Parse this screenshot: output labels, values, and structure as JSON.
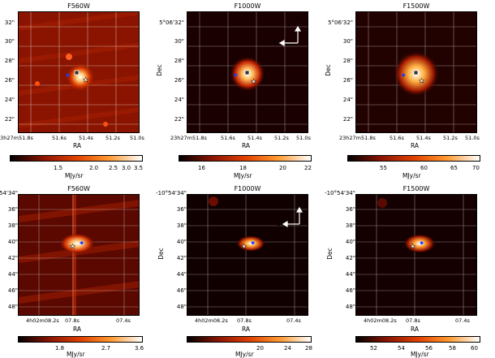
{
  "panels": [
    {
      "title": "F560W",
      "ylabels": [
        "32\"",
        "30\"",
        "28\"",
        "26\"",
        "24\"",
        "22\""
      ],
      "ylabel_prefix_first": "",
      "xlabels": [
        "23h27m51.8s",
        "51.6s",
        "51.4s",
        "51.2s",
        "51.0s"
      ],
      "xtitle": "RA",
      "ytitle": "",
      "cbar_ticks": [
        "1.5",
        "2.0",
        "2.5",
        "3.0",
        "3.5"
      ],
      "cbar_unit": "MJy/sr",
      "compass": false
    },
    {
      "title": "F1000W",
      "ylabels": [
        "5°06'32\"",
        "30\"",
        "28\"",
        "26\"",
        "24\"",
        "22\""
      ],
      "xlabels": [
        "23h27m51.8s",
        "51.6s",
        "51.4s",
        "51.2s",
        "51.0s"
      ],
      "xtitle": "RA",
      "ytitle": "Dec",
      "cbar_ticks": [
        "16",
        "18",
        "20",
        "22"
      ],
      "cbar_unit": "MJy/sr",
      "compass": true
    },
    {
      "title": "F1500W",
      "ylabels": [
        "5°06'32\"",
        "30\"",
        "28\"",
        "26\"",
        "24\"",
        "22\""
      ],
      "xlabels": [
        "23h27m51.8s",
        "51.6s",
        "51.4s",
        "51.2s",
        "51.0s"
      ],
      "xtitle": "RA",
      "ytitle": "Dec",
      "cbar_ticks": [
        "55",
        "60",
        "65",
        "70"
      ],
      "cbar_unit": "MJy/sr",
      "compass": false
    },
    {
      "title": "F560W",
      "ylabels": [
        "-10°54'34\"",
        "36\"",
        "38\"",
        "40\"",
        "42\"",
        "44\"",
        "46\"",
        "48\""
      ],
      "xlabels": [
        "4h02m08.2s",
        "07.8s",
        "07.4s"
      ],
      "xtitle": "RA",
      "ytitle": "",
      "cbar_ticks": [
        "1.8",
        "2.7",
        "3.6"
      ],
      "cbar_unit": "MJy/sr",
      "compass": false
    },
    {
      "title": "F1000W",
      "ylabels": [
        "-10°54'34\"",
        "36\"",
        "38\"",
        "40\"",
        "42\"",
        "44\"",
        "46\"",
        "48\""
      ],
      "xlabels": [
        "4h02m08.2s",
        "07.8s",
        "07.4s"
      ],
      "xtitle": "RA",
      "ytitle": "Dec",
      "cbar_ticks": [
        "20",
        "24",
        "28"
      ],
      "cbar_unit": "MJy/sr",
      "compass": true
    },
    {
      "title": "F1500W",
      "ylabels": [
        "-10°54'34\"",
        "36\"",
        "38\"",
        "40\"",
        "42\"",
        "44\"",
        "46\"",
        "48\""
      ],
      "xlabels": [
        "4h02m08.2s",
        "07.8s",
        "07.4s"
      ],
      "xtitle": "RA",
      "ytitle": "Dec",
      "cbar_ticks": [
        "52",
        "54",
        "56",
        "58",
        "60"
      ],
      "cbar_unit": "MJy/sr",
      "compass": false
    }
  ],
  "compass_labels": {
    "north": "N",
    "east": "E"
  },
  "colors": {
    "dark": "#000000",
    "mid": "#b01a00",
    "bright": "#ff8c1a",
    "peak": "#ffffff"
  }
}
